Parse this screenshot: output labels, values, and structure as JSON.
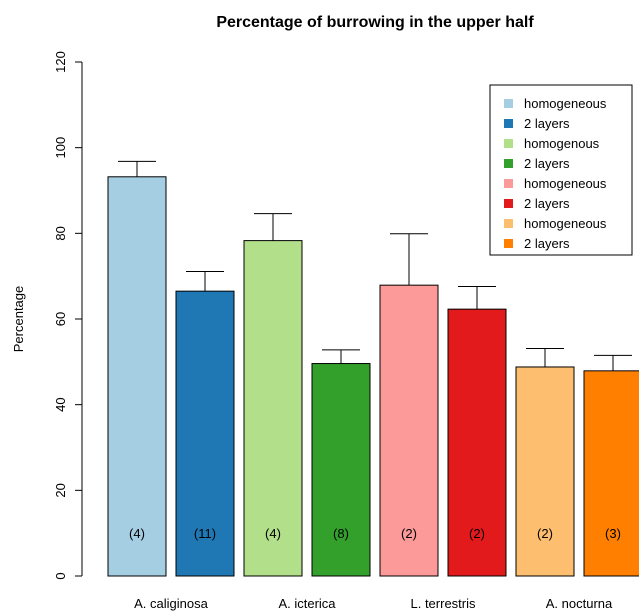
{
  "chart_data": {
    "type": "bar",
    "title": "Percentage of burrowing in the upper half",
    "ylabel": "Percentage",
    "xlabel": "",
    "ylim": [
      0,
      120
    ],
    "yticks": [
      0,
      20,
      40,
      60,
      80,
      100,
      120
    ],
    "grid": false,
    "legend_position": "top-right",
    "groups": [
      "A. caliginosa",
      "A. icterica",
      "L. terrestris",
      "A. nocturna"
    ],
    "bars": [
      {
        "group": "A. caliginosa",
        "legend": "homogeneous",
        "value": 93.2,
        "error": 3.6,
        "n_label": "(4)",
        "color": "#a6cee3"
      },
      {
        "group": "A. caliginosa",
        "legend": "2 layers",
        "value": 66.5,
        "error": 4.6,
        "n_label": "(11)",
        "color": "#1f78b4"
      },
      {
        "group": "A. icterica",
        "legend": "homogenous",
        "value": 78.3,
        "error": 6.3,
        "n_label": "(4)",
        "color": "#b2df8a"
      },
      {
        "group": "A. icterica",
        "legend": "2 layers",
        "value": 49.6,
        "error": 3.2,
        "n_label": "(8)",
        "color": "#33a02c"
      },
      {
        "group": "L. terrestris",
        "legend": "homogeneous",
        "value": 67.9,
        "error": 12.0,
        "n_label": "(2)",
        "color": "#fb9a99"
      },
      {
        "group": "L. terrestris",
        "legend": "2 layers",
        "value": 62.3,
        "error": 5.3,
        "n_label": "(2)",
        "color": "#e31a1c"
      },
      {
        "group": "A. nocturna",
        "legend": "homogeneous",
        "value": 48.8,
        "error": 4.3,
        "n_label": "(2)",
        "color": "#fdbf6f"
      },
      {
        "group": "A. nocturna",
        "legend": "2 layers",
        "value": 47.9,
        "error": 3.6,
        "n_label": "(3)",
        "color": "#ff7f00"
      }
    ]
  }
}
